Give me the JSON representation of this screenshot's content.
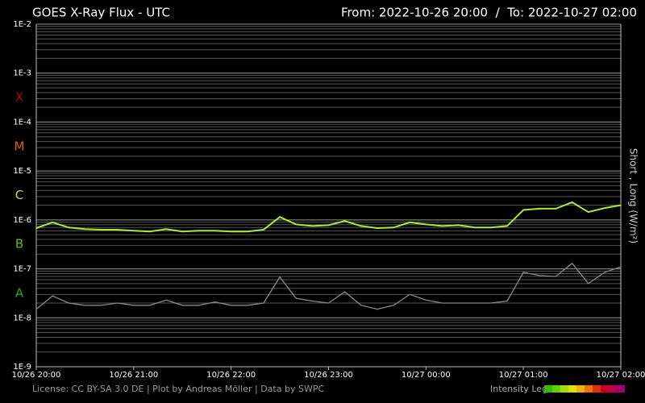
{
  "chart_data": {
    "type": "line",
    "title": "GOES X-Ray Flux - UTC",
    "range_text": "From: 2022-10-26 20:00  /  To: 2022-10-27 02:00",
    "y_axis_label": "Short , Long (W/m²)",
    "footer": "License: CC BY-SA 3.0 DE | Plot by Andreas Möller | Data by SWPC",
    "legend_title": "Intensity Legend",
    "legend_colors": [
      "#30c000",
      "#60d000",
      "#a0e000",
      "#e0e000",
      "#f0b000",
      "#f07000",
      "#e03000",
      "#d00020",
      "#c00050",
      "#a00070"
    ],
    "flare_classes": [
      {
        "label": "X",
        "color": "#c00000"
      },
      {
        "label": "M",
        "color": "#e06000"
      },
      {
        "label": "C",
        "color": "#d8d820"
      },
      {
        "label": "B",
        "color": "#60c000"
      },
      {
        "label": "A",
        "color": "#20b020"
      }
    ],
    "log_scale": true,
    "grid": true,
    "xlim": [
      "2022-10-26 20:00",
      "2022-10-27 02:00"
    ],
    "xticks": [
      {
        "value": "2022-10-26 20:00",
        "label": "10/26 20:00"
      },
      {
        "value": "2022-10-26 21:00",
        "label": "10/26 21:00"
      },
      {
        "value": "2022-10-26 22:00",
        "label": "10/26 22:00"
      },
      {
        "value": "2022-10-26 23:00",
        "label": "10/26 23:00"
      },
      {
        "value": "2022-10-27 00:00",
        "label": "10/27 00:00"
      },
      {
        "value": "2022-10-27 01:00",
        "label": "10/27 01:00"
      },
      {
        "value": "2022-10-27 02:00",
        "label": "10/27 02:00"
      }
    ],
    "ylim": [
      1e-09,
      0.01
    ],
    "yticks": [
      {
        "value": 0.01,
        "label": "1E-2"
      },
      {
        "value": 0.001,
        "label": "1E-3"
      },
      {
        "value": 0.0001,
        "label": "1E-4"
      },
      {
        "value": 1e-05,
        "label": "1E-5"
      },
      {
        "value": 1e-06,
        "label": "1E-6"
      },
      {
        "value": 1e-07,
        "label": "1E-7"
      },
      {
        "value": 1e-08,
        "label": "1E-8"
      },
      {
        "value": 1e-09,
        "label": "1E-9"
      }
    ],
    "x": [
      "2022-10-26 20:00",
      "2022-10-26 20:10",
      "2022-10-26 20:20",
      "2022-10-26 20:30",
      "2022-10-26 20:40",
      "2022-10-26 20:50",
      "2022-10-26 21:00",
      "2022-10-26 21:10",
      "2022-10-26 21:20",
      "2022-10-26 21:30",
      "2022-10-26 21:40",
      "2022-10-26 21:50",
      "2022-10-26 22:00",
      "2022-10-26 22:10",
      "2022-10-26 22:20",
      "2022-10-26 22:30",
      "2022-10-26 22:40",
      "2022-10-26 22:50",
      "2022-10-26 23:00",
      "2022-10-26 23:10",
      "2022-10-26 23:20",
      "2022-10-26 23:30",
      "2022-10-26 23:40",
      "2022-10-26 23:50",
      "2022-10-27 00:00",
      "2022-10-27 00:10",
      "2022-10-27 00:20",
      "2022-10-27 00:30",
      "2022-10-27 00:40",
      "2022-10-27 00:50",
      "2022-10-27 01:00",
      "2022-10-27 01:10",
      "2022-10-27 01:20",
      "2022-10-27 01:30",
      "2022-10-27 01:40",
      "2022-10-27 01:50",
      "2022-10-27 02:00"
    ],
    "series": [
      {
        "name": "Long",
        "color": "#a8f020",
        "values": [
          6.8e-07,
          8.9e-07,
          7e-07,
          6.5e-07,
          6.3e-07,
          6.3e-07,
          6e-07,
          5.8e-07,
          6.5e-07,
          5.8e-07,
          6e-07,
          6e-07,
          5.8e-07,
          5.8e-07,
          6.3e-07,
          1.15e-06,
          8.1e-07,
          7.5e-07,
          7.8e-07,
          9.5e-07,
          7.5e-07,
          6.8e-07,
          7e-07,
          8.9e-07,
          8.1e-07,
          7.5e-07,
          7.8e-07,
          7e-07,
          7e-07,
          7.5e-07,
          1.6e-06,
          1.7e-06,
          1.7e-06,
          2.3e-06,
          1.45e-06,
          1.75e-06,
          2e-06
        ]
      },
      {
        "name": "Short",
        "color": "#8a8a8a",
        "values": [
          1.5e-08,
          2.8e-08,
          2e-08,
          1.8e-08,
          1.8e-08,
          2e-08,
          1.8e-08,
          1.8e-08,
          2.3e-08,
          1.8e-08,
          1.8e-08,
          2.1e-08,
          1.8e-08,
          1.8e-08,
          2e-08,
          6.8e-08,
          2.5e-08,
          2.2e-08,
          2e-08,
          3.4e-08,
          1.8e-08,
          1.5e-08,
          1.8e-08,
          3e-08,
          2.3e-08,
          2e-08,
          2e-08,
          2e-08,
          2e-08,
          2.2e-08,
          8.5e-08,
          7.3e-08,
          7e-08,
          1.3e-07,
          5e-08,
          8.5e-08,
          1.1e-07
        ]
      }
    ]
  }
}
